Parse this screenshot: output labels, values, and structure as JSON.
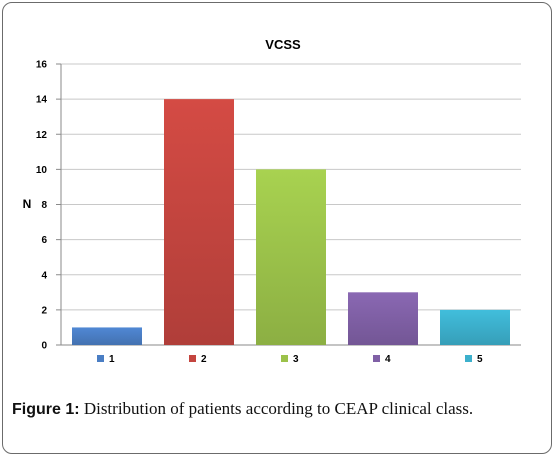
{
  "chart_data": {
    "type": "bar",
    "title": "VCSS",
    "ylabel": "N",
    "xlabel": "",
    "ylim": [
      0,
      16
    ],
    "yticks": [
      0,
      2,
      4,
      6,
      8,
      10,
      12,
      14,
      16
    ],
    "grid": true,
    "legend_position": "bottom",
    "categories": [
      "1",
      "2",
      "3",
      "4",
      "5"
    ],
    "values": [
      1,
      14,
      10,
      3,
      2
    ],
    "colors": [
      "#4a7ec4",
      "#c4453f",
      "#9cc24a",
      "#8060a6",
      "#3cb0cc"
    ]
  },
  "caption": {
    "label": "Figure 1:",
    "text": " Distribution of patients according to CEAP clinical class."
  }
}
